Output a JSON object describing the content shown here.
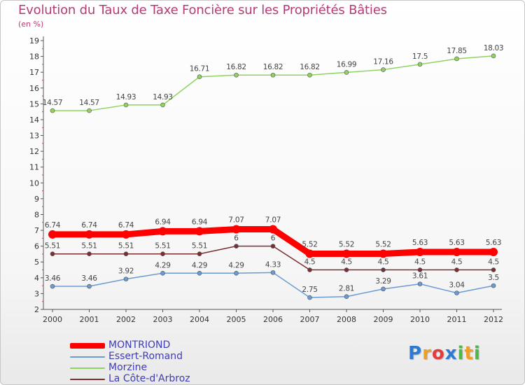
{
  "header": {
    "title": "Evolution du Taux de Taxe Foncière sur les Propriétés Bâties",
    "subtitle": "(en %)"
  },
  "chart_data": {
    "type": "line",
    "title": "Evolution du Taux de Taxe Foncière sur les Propriétés Bâties",
    "ylabel": "(en %)",
    "xlabel": "",
    "categories": [
      "2000",
      "2001",
      "2002",
      "2003",
      "2004",
      "2005",
      "2006",
      "2007",
      "2008",
      "2009",
      "2010",
      "2011",
      "2012"
    ],
    "ylim": [
      2,
      19
    ],
    "yticks": [
      2,
      3,
      4,
      5,
      6,
      7,
      8,
      9,
      10,
      11,
      12,
      13,
      14,
      15,
      16,
      17,
      18,
      19
    ],
    "grid": false,
    "legend_position": "bottom-left",
    "series": [
      {
        "name": "MONTRIOND",
        "color": "#ff0000",
        "values": [
          6.74,
          6.74,
          6.74,
          6.94,
          6.94,
          7.07,
          7.07,
          5.52,
          5.52,
          5.52,
          5.63,
          5.63,
          5.63
        ],
        "labels": [
          "6.74",
          "6.74",
          "6.74",
          "6.94",
          "6.94",
          "7.07",
          "7.07",
          "5.52",
          "5.52",
          "5.52",
          "5.63",
          "5.63",
          "5.63"
        ]
      },
      {
        "name": "Essert-Romand",
        "color": "#6b9bd1",
        "values": [
          3.46,
          3.46,
          3.92,
          4.29,
          4.29,
          4.29,
          4.33,
          2.75,
          2.81,
          3.29,
          3.61,
          3.04,
          3.5
        ],
        "labels": [
          "3.46",
          "3.46",
          "3.92",
          "4.29",
          "4.29",
          "4.29",
          "4.33",
          "2.75",
          "2.81",
          "3.29",
          "3.61",
          "3.04",
          "3.5"
        ]
      },
      {
        "name": "Morzine",
        "color": "#8fd35f",
        "values": [
          14.57,
          14.57,
          14.93,
          14.93,
          16.71,
          16.82,
          16.82,
          16.82,
          16.99,
          17.16,
          17.5,
          17.85,
          18.03
        ],
        "labels": [
          "14.57",
          "14.57",
          "14.93",
          "14.93",
          "16.71",
          "16.82",
          "16.82",
          "16.82",
          "16.99",
          "17.16",
          "17.5",
          "17.85",
          "18.03"
        ]
      },
      {
        "name": "La Côte-d'Arbroz",
        "color": "#7a2e33",
        "values": [
          5.51,
          5.51,
          5.51,
          5.51,
          5.51,
          6,
          6,
          4.5,
          4.5,
          4.5,
          4.5,
          4.5,
          4.5
        ],
        "labels": [
          "5.51",
          "5.51",
          "5.51",
          "5.51",
          "5.51",
          "6",
          "6",
          "4.5",
          "4.5",
          "4.5",
          "4.5",
          "4.5",
          "4.5"
        ]
      }
    ]
  },
  "logo": {
    "letters": [
      "P",
      "r",
      "o",
      "x",
      "i",
      "t",
      "i"
    ],
    "colors": [
      "#2b7bd6",
      "#f0a020",
      "#e23d3d",
      "#2b7bd6",
      "#4cb848",
      "#f0a020",
      "#4cb848"
    ]
  }
}
